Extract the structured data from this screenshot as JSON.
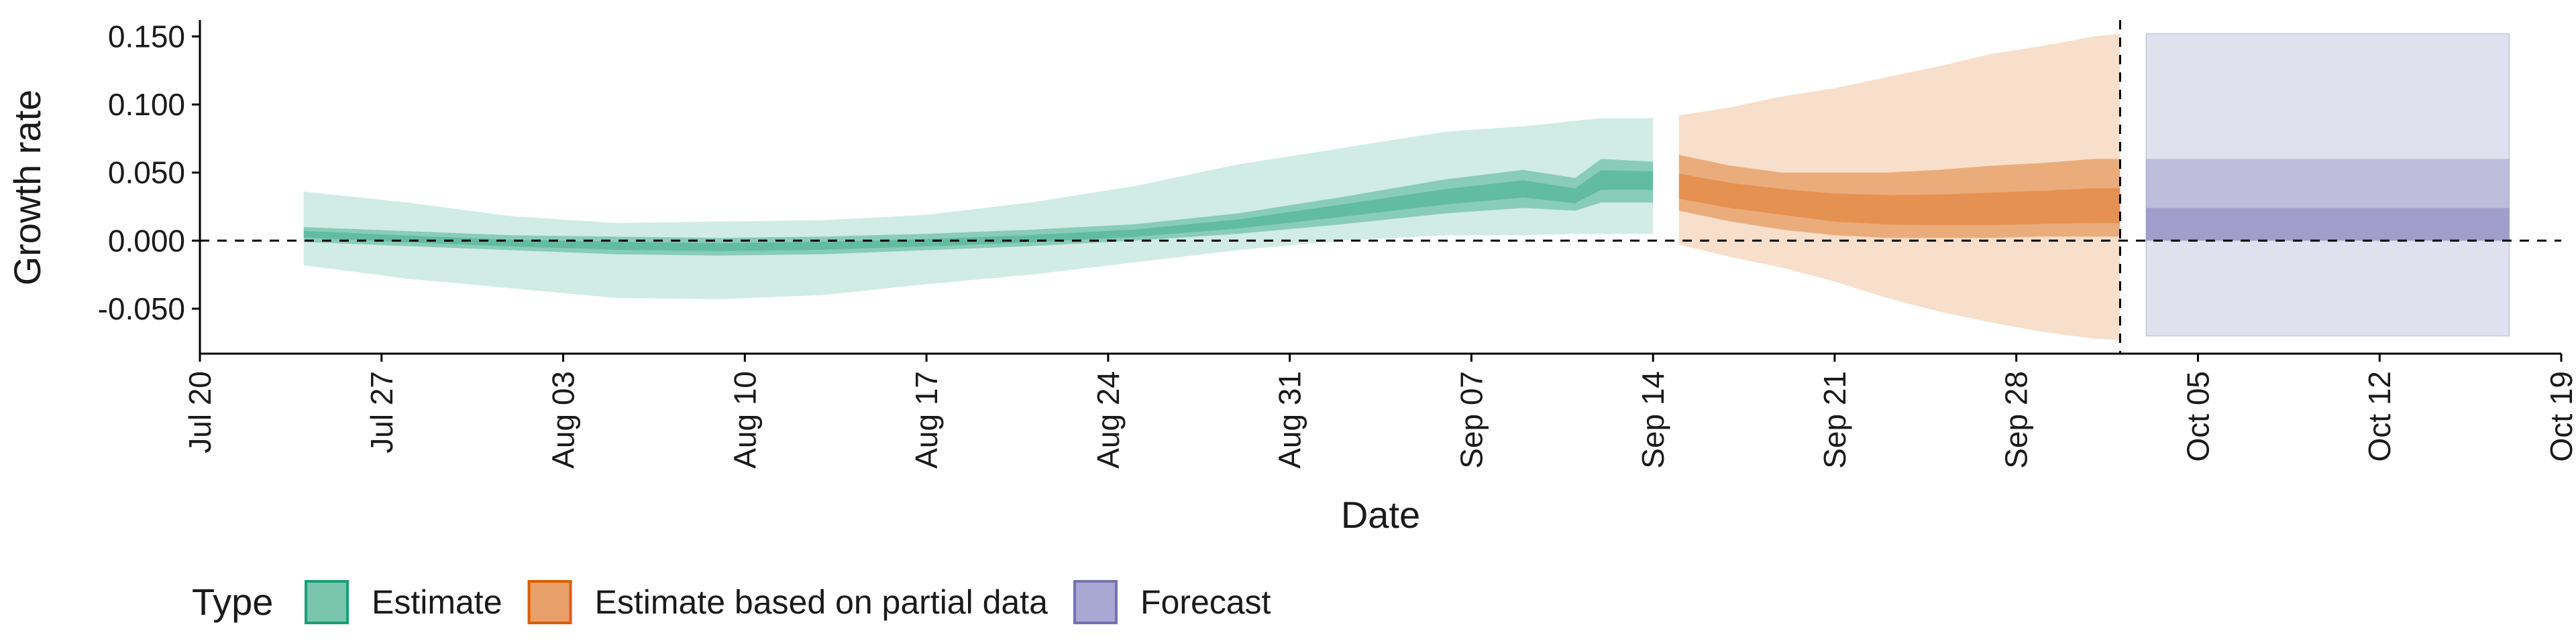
{
  "chart_data": {
    "type": "area",
    "x_axis": {
      "label": "Date",
      "range": [
        "2020-07-20",
        "2020-10-19"
      ],
      "ticks": [
        {
          "date": "2020-07-20",
          "label": "Jul 20"
        },
        {
          "date": "2020-07-27",
          "label": "Jul 27"
        },
        {
          "date": "2020-08-03",
          "label": "Aug 03"
        },
        {
          "date": "2020-08-10",
          "label": "Aug 10"
        },
        {
          "date": "2020-08-17",
          "label": "Aug 17"
        },
        {
          "date": "2020-08-24",
          "label": "Aug 24"
        },
        {
          "date": "2020-08-31",
          "label": "Aug 31"
        },
        {
          "date": "2020-09-07",
          "label": "Sep 07"
        },
        {
          "date": "2020-09-14",
          "label": "Sep 14"
        },
        {
          "date": "2020-09-21",
          "label": "Sep 21"
        },
        {
          "date": "2020-09-28",
          "label": "Sep 28"
        },
        {
          "date": "2020-10-05",
          "label": "Oct 05"
        },
        {
          "date": "2020-10-12",
          "label": "Oct 12"
        },
        {
          "date": "2020-10-19",
          "label": "Oct 19"
        }
      ]
    },
    "y_axis": {
      "label": "Growth rate",
      "range": [
        -0.083,
        0.162
      ],
      "ticks": [
        {
          "value": -0.05,
          "label": "-0.050"
        },
        {
          "value": 0.0,
          "label": "0.000"
        },
        {
          "value": 0.05,
          "label": "0.050"
        },
        {
          "value": 0.1,
          "label": "0.100"
        },
        {
          "value": 0.15,
          "label": "0.150"
        }
      ]
    },
    "reference_lines": {
      "horizontal_y": 0.0,
      "vertical_date": "2020-10-02"
    },
    "grid": false,
    "legend": {
      "title": "Type",
      "position": "bottom-left",
      "entries": [
        {
          "label": "Estimate",
          "fill": "#79c6ad",
          "stroke": "#1b9e77"
        },
        {
          "label": "Estimate based on partial data",
          "fill": "#e9a06b",
          "stroke": "#d95f02"
        },
        {
          "label": "Forecast",
          "fill": "#a9a8d2",
          "stroke": "#7570b3"
        }
      ]
    },
    "series": [
      {
        "type_label": "Estimate",
        "color": "#1b9e77",
        "dates": [
          "2020-07-24",
          "2020-07-28",
          "2020-08-01",
          "2020-08-05",
          "2020-08-09",
          "2020-08-13",
          "2020-08-17",
          "2020-08-21",
          "2020-08-25",
          "2020-08-29",
          "2020-09-02",
          "2020-09-06",
          "2020-09-09",
          "2020-09-11",
          "2020-09-12",
          "2020-09-14"
        ],
        "median": [
          0.005,
          0.001,
          -0.002,
          -0.004,
          -0.005,
          -0.004,
          -0.002,
          0.001,
          0.005,
          0.012,
          0.022,
          0.032,
          0.038,
          0.032,
          0.045,
          0.045
        ],
        "lower_50": [
          -0.001,
          -0.004,
          -0.007,
          -0.01,
          -0.011,
          -0.01,
          -0.007,
          -0.004,
          0.0,
          0.005,
          0.012,
          0.02,
          0.024,
          0.022,
          0.028,
          0.028
        ],
        "upper_50": [
          0.01,
          0.007,
          0.004,
          0.003,
          0.002,
          0.003,
          0.005,
          0.008,
          0.012,
          0.02,
          0.032,
          0.045,
          0.052,
          0.046,
          0.06,
          0.058
        ],
        "lower_90": [
          -0.018,
          -0.028,
          -0.035,
          -0.042,
          -0.043,
          -0.04,
          -0.032,
          -0.025,
          -0.016,
          -0.007,
          0.0,
          0.004,
          0.004,
          0.005,
          0.005,
          0.005
        ],
        "upper_90": [
          0.036,
          0.028,
          0.018,
          0.013,
          0.014,
          0.015,
          0.019,
          0.028,
          0.04,
          0.056,
          0.068,
          0.08,
          0.084,
          0.088,
          0.09,
          0.09
        ]
      },
      {
        "type_label": "Estimate based on partial data",
        "color": "#d95f02",
        "dates": [
          "2020-09-15",
          "2020-09-17",
          "2020-09-19",
          "2020-09-21",
          "2020-09-23",
          "2020-09-25",
          "2020-09-27",
          "2020-09-29",
          "2020-10-01",
          "2020-10-02"
        ],
        "median": [
          0.038,
          0.032,
          0.028,
          0.022,
          0.02,
          0.019,
          0.019,
          0.02,
          0.021,
          0.021
        ],
        "lower_50": [
          0.022,
          0.014,
          0.008,
          0.004,
          0.002,
          0.002,
          0.002,
          0.003,
          0.003,
          0.003
        ],
        "upper_50": [
          0.063,
          0.055,
          0.05,
          0.05,
          0.05,
          0.052,
          0.055,
          0.057,
          0.06,
          0.06
        ],
        "lower_90": [
          -0.003,
          -0.012,
          -0.02,
          -0.03,
          -0.042,
          -0.052,
          -0.06,
          -0.067,
          -0.072,
          -0.073
        ],
        "upper_90": [
          0.092,
          0.098,
          0.106,
          0.112,
          0.12,
          0.128,
          0.137,
          0.143,
          0.15,
          0.152
        ]
      },
      {
        "type_label": "Forecast",
        "color": "#7570b3",
        "dates": [
          "2020-10-03",
          "2020-10-17"
        ],
        "median": [
          0.0,
          0.0
        ],
        "lower_50": [
          0.0,
          0.0
        ],
        "upper_50": [
          0.024,
          0.024
        ],
        "lower_90": [
          -0.07,
          -0.07
        ],
        "upper_90": [
          0.152,
          0.152
        ],
        "lower_mid": [
          0.0,
          0.0
        ],
        "upper_mid": [
          0.06,
          0.06
        ]
      }
    ]
  }
}
